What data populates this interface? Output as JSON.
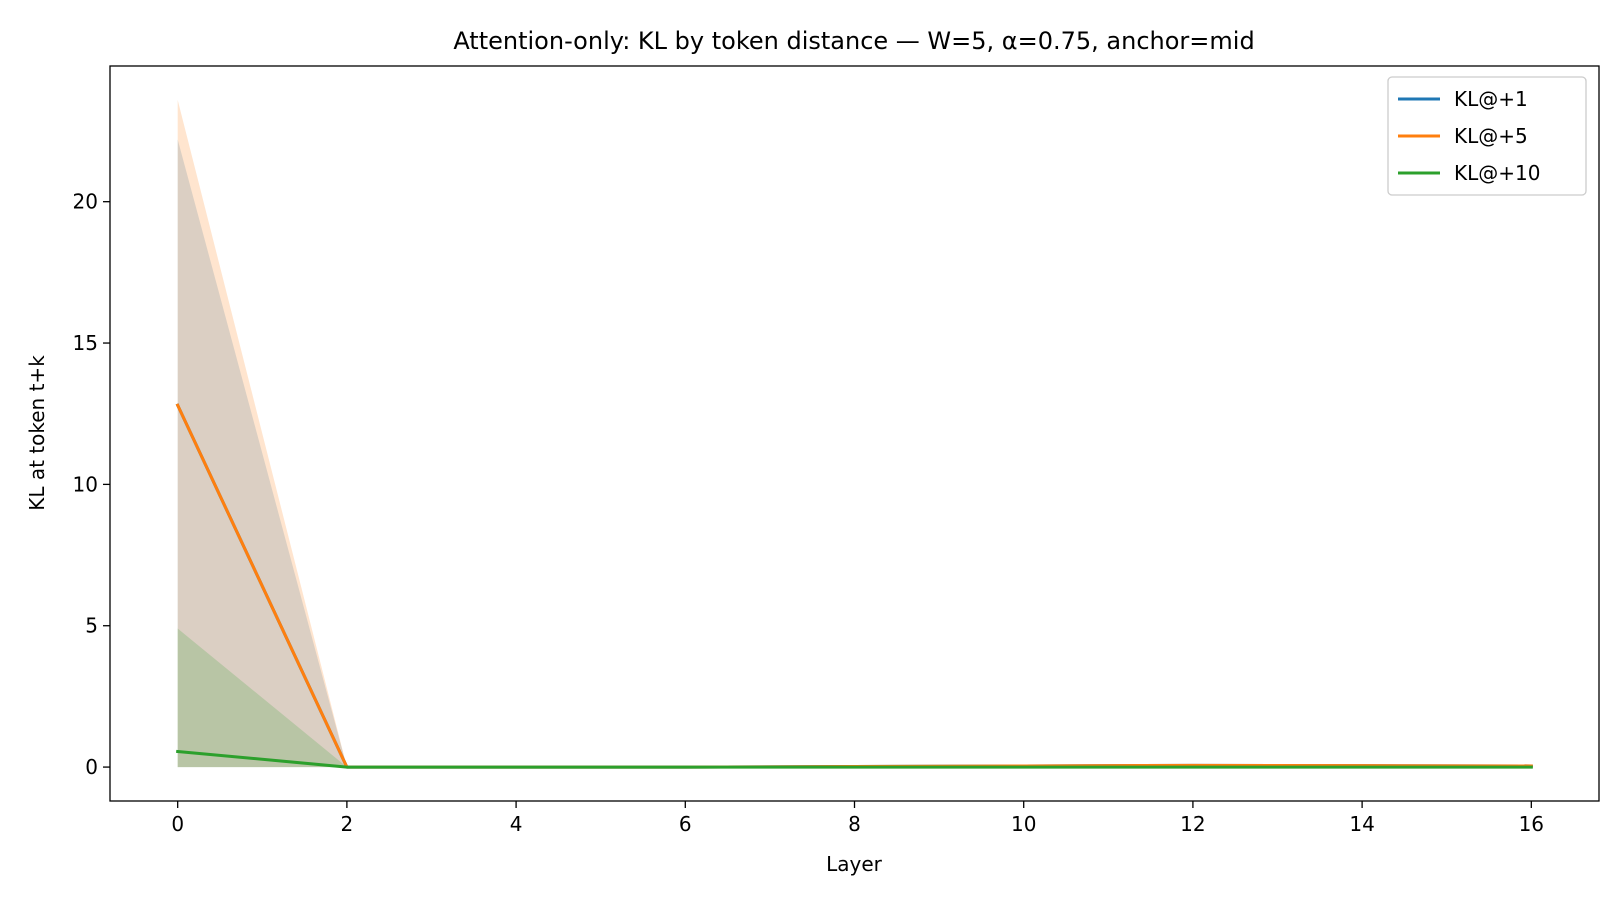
{
  "chart_data": {
    "type": "line",
    "title": "Attention-only: KL by token distance — W=5, α=0.75, anchor=mid",
    "xlabel": "Layer",
    "ylabel": "KL at token t+k",
    "x": [
      0,
      2,
      4,
      6,
      8,
      10,
      12,
      14,
      16
    ],
    "xlim": [
      -0.8,
      16.8
    ],
    "ylim": [
      -1.2,
      24.8
    ],
    "xticks": [
      0,
      2,
      4,
      6,
      8,
      10,
      12,
      14,
      16
    ],
    "yticks": [
      0,
      5,
      10,
      15,
      20
    ],
    "grid": false,
    "legend_position": "top-right",
    "series": [
      {
        "name": "KL@+1",
        "color": "#1f77b4",
        "values": [
          12.8,
          0.0,
          0.0,
          0.0,
          0.02,
          0.04,
          0.06,
          0.05,
          0.04
        ],
        "band_lower": [
          0.0,
          0.0,
          0.0,
          0.0,
          0.0,
          0.0,
          0.0,
          0.0,
          0.0
        ],
        "band_upper": [
          22.2,
          0.0,
          0.0,
          0.0,
          0.05,
          0.08,
          0.1,
          0.09,
          0.08
        ]
      },
      {
        "name": "KL@+5",
        "color": "#ff7f0e",
        "values": [
          12.8,
          0.0,
          0.0,
          0.0,
          0.02,
          0.04,
          0.06,
          0.05,
          0.04
        ],
        "band_lower": [
          0.0,
          0.0,
          0.0,
          0.0,
          0.0,
          0.0,
          0.0,
          0.0,
          0.0
        ],
        "band_upper": [
          23.6,
          0.0,
          0.0,
          0.0,
          0.05,
          0.08,
          0.1,
          0.09,
          0.08
        ]
      },
      {
        "name": "KL@+10",
        "color": "#2ca02c",
        "values": [
          0.55,
          0.0,
          0.0,
          0.0,
          0.0,
          0.0,
          0.0,
          0.0,
          0.0
        ],
        "band_lower": [
          0.0,
          0.0,
          0.0,
          0.0,
          0.0,
          0.0,
          0.0,
          0.0,
          0.0
        ],
        "band_upper": [
          4.9,
          0.0,
          0.0,
          0.0,
          0.0,
          0.0,
          0.0,
          0.0,
          0.0
        ]
      }
    ]
  }
}
